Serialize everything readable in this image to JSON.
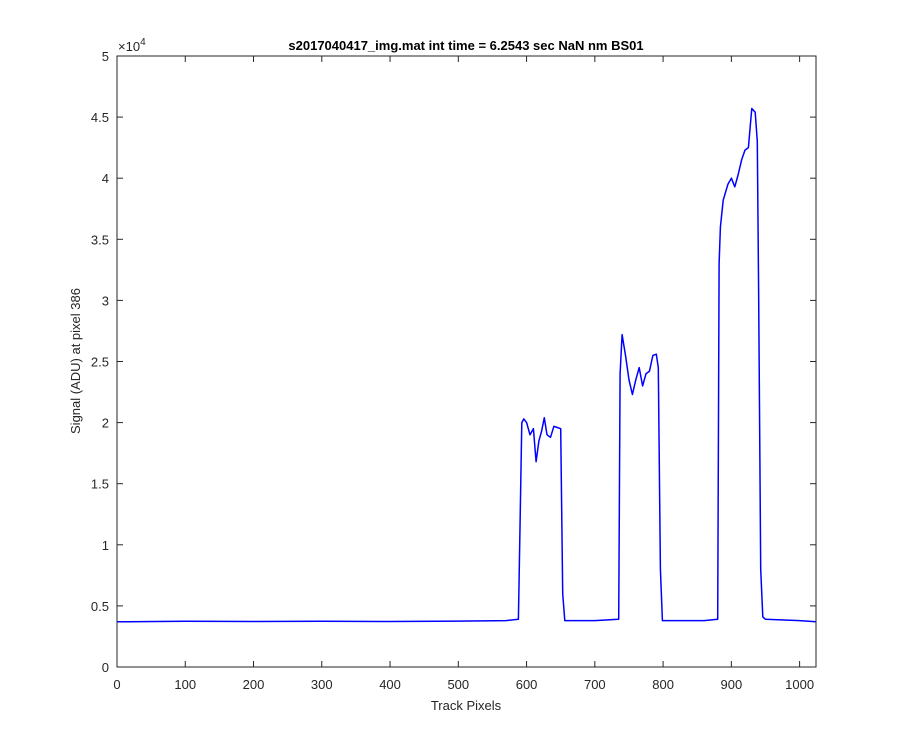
{
  "chart_data": {
    "type": "line",
    "title": "s2017040417_img.mat int time = 6.2543 sec  NaN nm BS01",
    "xlabel": "Track Pixels",
    "ylabel": "Signal (ADU) at pixel 386",
    "exponent_label": "×10",
    "exponent_power": "4",
    "xlim": [
      0,
      1024
    ],
    "ylim": [
      0,
      50000
    ],
    "xticks": [
      0,
      100,
      200,
      300,
      400,
      500,
      600,
      700,
      800,
      900,
      1000
    ],
    "xtick_labels": [
      "0",
      "100",
      "200",
      "300",
      "400",
      "500",
      "600",
      "700",
      "800",
      "900",
      "1000"
    ],
    "yticks": [
      0,
      5000,
      10000,
      15000,
      20000,
      25000,
      30000,
      35000,
      40000,
      45000,
      50000
    ],
    "ytick_labels": [
      "0",
      "0.5",
      "1",
      "1.5",
      "2",
      "2.5",
      "3",
      "3.5",
      "4",
      "4.5",
      "5"
    ],
    "grid": false,
    "line_color": "#0000ff",
    "series": [
      {
        "x": [
          0,
          100,
          200,
          300,
          400,
          500,
          570,
          588,
          590,
          593,
          596,
          600,
          605,
          610,
          614,
          618,
          622,
          626,
          630,
          635,
          640,
          645,
          650,
          653,
          656,
          700,
          735,
          737,
          740,
          745,
          750,
          755,
          760,
          765,
          770,
          775,
          780,
          785,
          790,
          793,
          796,
          799,
          860,
          880,
          882,
          884,
          888,
          895,
          900,
          905,
          910,
          915,
          920,
          925,
          928,
          930,
          935,
          938,
          940,
          943,
          946,
          950,
          1000,
          1024
        ],
        "y": [
          3700,
          3750,
          3720,
          3740,
          3720,
          3760,
          3800,
          3900,
          10000,
          20000,
          20300,
          20000,
          19000,
          19500,
          16800,
          18500,
          19300,
          20400,
          19000,
          18800,
          19700,
          19600,
          19500,
          6000,
          3800,
          3800,
          3900,
          24000,
          27200,
          25500,
          23500,
          22300,
          23500,
          24500,
          23000,
          24000,
          24200,
          25500,
          25600,
          24500,
          8000,
          3800,
          3800,
          3900,
          33000,
          36000,
          38200,
          39500,
          40000,
          39300,
          40300,
          41500,
          42300,
          42500,
          44500,
          45700,
          45400,
          43000,
          30000,
          8000,
          4100,
          3900,
          3800,
          3700
        ]
      }
    ]
  }
}
